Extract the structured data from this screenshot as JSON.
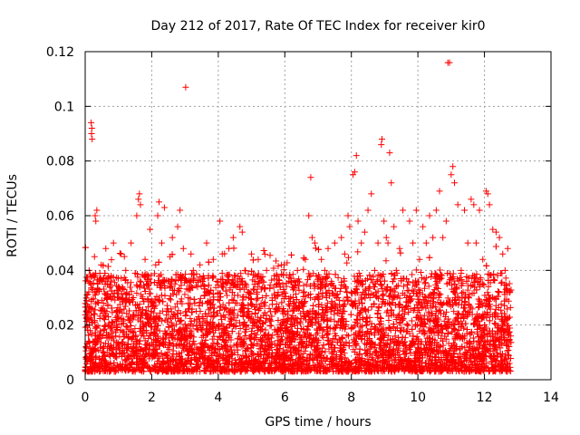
{
  "chart_data": {
    "type": "scatter",
    "title": "Day 212 of 2017, Rate Of TEC Index for receiver kir0",
    "xlabel": "GPS time / hours",
    "ylabel": "ROTI / TECUs",
    "xlim": [
      0,
      14
    ],
    "ylim": [
      0,
      0.12
    ],
    "xticks": [
      0,
      2,
      4,
      6,
      8,
      10,
      12,
      14
    ],
    "xtick_labels": [
      "0",
      "2",
      "4",
      "6",
      "8",
      "10",
      "12",
      "14"
    ],
    "yticks": [
      0,
      0.02,
      0.04,
      0.06,
      0.08,
      0.1,
      0.12
    ],
    "ytick_labels": [
      "0",
      "0.02",
      "0.04",
      "0.06",
      "0.08",
      "0.1",
      "0.12"
    ],
    "grid": true,
    "marker": "+",
    "color": "#ff0000",
    "series": [
      {
        "name": "ROTI",
        "note": "dense cloud of several thousand points, mostly 0.005-0.04 TECUs between 0 and 12.8 h; representative sample listed",
        "points": [
          [
            0.02,
            0.012
          ],
          [
            0.05,
            0.031
          ],
          [
            0.08,
            0.022
          ],
          [
            0.12,
            0.04
          ],
          [
            0.15,
            0.018
          ],
          [
            0.18,
            0.094
          ],
          [
            0.19,
            0.09
          ],
          [
            0.2,
            0.092
          ],
          [
            0.21,
            0.088
          ],
          [
            0.22,
            0.026
          ],
          [
            0.28,
            0.045
          ],
          [
            0.3,
            0.06
          ],
          [
            0.32,
            0.058
          ],
          [
            0.35,
            0.062
          ],
          [
            0.38,
            0.035
          ],
          [
            0.42,
            0.015
          ],
          [
            0.48,
            0.042
          ],
          [
            0.55,
            0.028
          ],
          [
            0.62,
            0.048
          ],
          [
            0.7,
            0.02
          ],
          [
            0.78,
            0.038
          ],
          [
            0.85,
            0.05
          ],
          [
            0.92,
            0.016
          ],
          [
            1.0,
            0.034
          ],
          [
            1.08,
            0.046
          ],
          [
            1.15,
            0.022
          ],
          [
            1.22,
            0.04
          ],
          [
            1.3,
            0.012
          ],
          [
            1.38,
            0.05
          ],
          [
            1.45,
            0.03
          ],
          [
            1.55,
            0.06
          ],
          [
            1.6,
            0.066
          ],
          [
            1.63,
            0.068
          ],
          [
            1.66,
            0.064
          ],
          [
            1.72,
            0.018
          ],
          [
            1.8,
            0.044
          ],
          [
            1.88,
            0.036
          ],
          [
            1.95,
            0.055
          ],
          [
            2.05,
            0.028
          ],
          [
            2.12,
            0.042
          ],
          [
            2.18,
            0.06
          ],
          [
            2.22,
            0.065
          ],
          [
            2.3,
            0.05
          ],
          [
            2.38,
            0.063
          ],
          [
            2.45,
            0.025
          ],
          [
            2.55,
            0.045
          ],
          [
            2.62,
            0.052
          ],
          [
            2.7,
            0.035
          ],
          [
            2.78,
            0.056
          ],
          [
            2.85,
            0.062
          ],
          [
            2.95,
            0.048
          ],
          [
            3.02,
            0.107
          ],
          [
            3.1,
            0.03
          ],
          [
            3.18,
            0.046
          ],
          [
            3.25,
            0.04
          ],
          [
            3.35,
            0.022
          ],
          [
            3.45,
            0.042
          ],
          [
            3.55,
            0.038
          ],
          [
            3.65,
            0.05
          ],
          [
            3.75,
            0.028
          ],
          [
            3.85,
            0.044
          ],
          [
            3.95,
            0.036
          ],
          [
            4.05,
            0.058
          ],
          [
            4.12,
            0.046
          ],
          [
            4.2,
            0.018
          ],
          [
            4.32,
            0.048
          ],
          [
            4.45,
            0.052
          ],
          [
            4.55,
            0.034
          ],
          [
            4.65,
            0.056
          ],
          [
            4.72,
            0.054
          ],
          [
            4.8,
            0.04
          ],
          [
            4.9,
            0.026
          ],
          [
            5.0,
            0.046
          ],
          [
            5.1,
            0.036
          ],
          [
            5.2,
            0.044
          ],
          [
            5.32,
            0.03
          ],
          [
            5.45,
            0.04
          ],
          [
            5.55,
            0.022
          ],
          [
            5.68,
            0.038
          ],
          [
            5.8,
            0.032
          ],
          [
            5.9,
            0.042
          ],
          [
            6.0,
            0.018
          ],
          [
            6.12,
            0.036
          ],
          [
            6.25,
            0.03
          ],
          [
            6.38,
            0.04
          ],
          [
            6.5,
            0.028
          ],
          [
            6.62,
            0.044
          ],
          [
            6.72,
            0.06
          ],
          [
            6.78,
            0.074
          ],
          [
            6.82,
            0.052
          ],
          [
            6.9,
            0.05
          ],
          [
            7.0,
            0.034
          ],
          [
            7.1,
            0.044
          ],
          [
            7.2,
            0.04
          ],
          [
            7.3,
            0.048
          ],
          [
            7.4,
            0.036
          ],
          [
            7.5,
            0.05
          ],
          [
            7.6,
            0.03
          ],
          [
            7.7,
            0.052
          ],
          [
            7.8,
            0.046
          ],
          [
            7.9,
            0.06
          ],
          [
            7.95,
            0.056
          ],
          [
            8.05,
            0.075
          ],
          [
            8.1,
            0.076
          ],
          [
            8.15,
            0.082
          ],
          [
            8.2,
            0.058
          ],
          [
            8.3,
            0.05
          ],
          [
            8.4,
            0.054
          ],
          [
            8.5,
            0.062
          ],
          [
            8.6,
            0.068
          ],
          [
            8.7,
            0.04
          ],
          [
            8.8,
            0.05
          ],
          [
            8.9,
            0.086
          ],
          [
            8.92,
            0.088
          ],
          [
            8.98,
            0.058
          ],
          [
            9.05,
            0.052
          ],
          [
            9.1,
            0.05
          ],
          [
            9.15,
            0.083
          ],
          [
            9.2,
            0.072
          ],
          [
            9.28,
            0.056
          ],
          [
            9.35,
            0.04
          ],
          [
            9.45,
            0.048
          ],
          [
            9.55,
            0.062
          ],
          [
            9.65,
            0.03
          ],
          [
            9.75,
            0.058
          ],
          [
            9.85,
            0.05
          ],
          [
            9.95,
            0.062
          ],
          [
            10.05,
            0.044
          ],
          [
            10.15,
            0.056
          ],
          [
            10.25,
            0.05
          ],
          [
            10.35,
            0.06
          ],
          [
            10.45,
            0.052
          ],
          [
            10.55,
            0.062
          ],
          [
            10.65,
            0.069
          ],
          [
            10.75,
            0.052
          ],
          [
            10.85,
            0.058
          ],
          [
            10.9,
            0.116
          ],
          [
            10.95,
            0.116
          ],
          [
            11.0,
            0.075
          ],
          [
            11.05,
            0.078
          ],
          [
            11.1,
            0.072
          ],
          [
            11.2,
            0.064
          ],
          [
            11.3,
            0.04
          ],
          [
            11.4,
            0.062
          ],
          [
            11.5,
            0.05
          ],
          [
            11.6,
            0.066
          ],
          [
            11.68,
            0.064
          ],
          [
            11.75,
            0.05
          ],
          [
            11.85,
            0.062
          ],
          [
            11.95,
            0.044
          ],
          [
            12.05,
            0.069
          ],
          [
            12.1,
            0.068
          ],
          [
            12.15,
            0.064
          ],
          [
            12.25,
            0.055
          ],
          [
            12.35,
            0.054
          ],
          [
            12.45,
            0.052
          ],
          [
            12.55,
            0.046
          ],
          [
            12.62,
            0.04
          ],
          [
            12.7,
            0.048
          ],
          [
            12.75,
            0.032
          ]
        ]
      }
    ]
  }
}
